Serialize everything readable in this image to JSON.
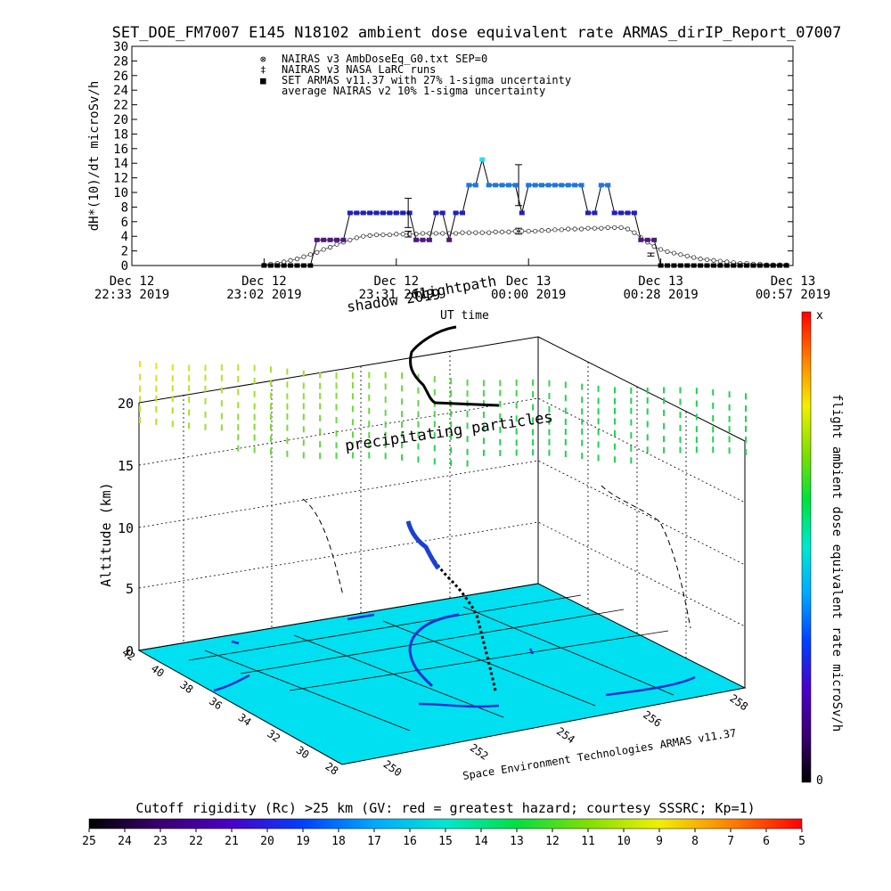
{
  "title": "SET_DOE_FM7007  E145 N18102 ambient dose equivalent rate ARMAS_dirIP_Report_07007",
  "colors": {
    "nairas_v3": "#333333",
    "armas": "#1f3fd6",
    "cyan_surface": "#00e0f0",
    "trajectory": "#000000"
  },
  "chart_data": [
    {
      "type": "scatter",
      "ylabel": "dH*(10)/dt microSv/h",
      "ylim": [
        0,
        30
      ],
      "yticks": [
        0,
        2,
        4,
        6,
        8,
        10,
        12,
        14,
        16,
        18,
        20,
        22,
        24,
        26,
        28,
        30
      ],
      "xticks": [
        {
          "line1": "Dec 12",
          "line2": "22:33 2019"
        },
        {
          "line1": "Dec 12",
          "line2": "23:02 2019"
        },
        {
          "line1": "Dec 12",
          "line2": "23:31 2019"
        },
        {
          "line1": "Dec 13",
          "line2": "00:00 2019"
        },
        {
          "line1": "Dec 13",
          "line2": "00:28 2019"
        },
        {
          "line1": "Dec 13",
          "line2": "00:57 2019"
        }
      ],
      "legend": [
        {
          "symbol": "⊗",
          "label": "NAIRAS v3 AmbDoseEq_G0.txt SEP=0"
        },
        {
          "symbol": "‡",
          "label": "NAIRAS v3 NASA LaRC runs"
        },
        {
          "symbol": "■",
          "label": "SET ARMAS v11.37 with 27% 1-sigma uncertainty"
        },
        {
          "symbol": "",
          "label": "average NAIRAS v2 10% 1-sigma uncertainty"
        }
      ],
      "series": [
        {
          "name": "NAIRAS v3 AmbDoseEq_G0.txt SEP=0",
          "x": [
            0.2,
            0.21,
            0.22,
            0.23,
            0.24,
            0.25,
            0.26,
            0.27,
            0.28,
            0.29,
            0.3,
            0.31,
            0.32,
            0.33,
            0.34,
            0.35,
            0.36,
            0.37,
            0.38,
            0.39,
            0.4,
            0.41,
            0.42,
            0.43,
            0.44,
            0.45,
            0.46,
            0.47,
            0.48,
            0.49,
            0.5,
            0.51,
            0.52,
            0.53,
            0.54,
            0.55,
            0.56,
            0.57,
            0.58,
            0.59,
            0.6,
            0.61,
            0.62,
            0.63,
            0.64,
            0.65,
            0.66,
            0.67,
            0.68,
            0.69,
            0.7,
            0.71,
            0.72,
            0.73,
            0.74,
            0.75,
            0.76,
            0.77,
            0.78,
            0.79,
            0.8,
            0.81,
            0.82,
            0.83,
            0.84,
            0.85,
            0.86,
            0.87,
            0.88,
            0.89,
            0.9,
            0.91,
            0.92,
            0.93,
            0.94,
            0.95,
            0.96,
            0.97,
            0.98,
            0.99
          ],
          "y": [
            0.1,
            0.2,
            0.3,
            0.5,
            0.7,
            0.9,
            1.2,
            1.5,
            1.8,
            2.2,
            2.5,
            2.9,
            3.2,
            3.5,
            3.8,
            4.0,
            4.1,
            4.2,
            4.2,
            4.2,
            4.3,
            4.3,
            4.3,
            4.3,
            4.4,
            4.4,
            4.4,
            4.4,
            4.4,
            4.4,
            4.5,
            4.5,
            4.5,
            4.5,
            4.5,
            4.6,
            4.6,
            4.6,
            4.7,
            4.7,
            4.7,
            4.7,
            4.8,
            4.8,
            4.9,
            4.9,
            5.0,
            5.0,
            5.0,
            5.1,
            5.1,
            5.1,
            5.2,
            5.2,
            5.2,
            5.0,
            4.5,
            3.8,
            3.2,
            2.6,
            2.2,
            1.9,
            1.7,
            1.5,
            1.3,
            1.1,
            0.9,
            0.8,
            0.7,
            0.6,
            0.5,
            0.4,
            0.3,
            0.3,
            0.2,
            0.2,
            0.1,
            0.1,
            0.1,
            0.1
          ]
        },
        {
          "name": "SET ARMAS v11.37 with 27% 1-sigma uncertainty",
          "x": [
            0.2,
            0.21,
            0.22,
            0.23,
            0.24,
            0.25,
            0.26,
            0.27,
            0.28,
            0.29,
            0.3,
            0.31,
            0.32,
            0.33,
            0.34,
            0.35,
            0.36,
            0.37,
            0.38,
            0.39,
            0.4,
            0.41,
            0.42,
            0.43,
            0.44,
            0.45,
            0.46,
            0.47,
            0.48,
            0.49,
            0.5,
            0.51,
            0.52,
            0.53,
            0.54,
            0.55,
            0.56,
            0.57,
            0.58,
            0.59,
            0.6,
            0.61,
            0.62,
            0.63,
            0.64,
            0.65,
            0.66,
            0.67,
            0.68,
            0.69,
            0.7,
            0.71,
            0.72,
            0.73,
            0.74,
            0.75,
            0.76,
            0.77,
            0.78,
            0.79,
            0.8,
            0.81,
            0.82,
            0.83,
            0.84,
            0.85,
            0.86,
            0.87,
            0.88,
            0.89,
            0.9,
            0.91,
            0.92,
            0.93,
            0.94,
            0.95,
            0.96,
            0.97,
            0.98,
            0.99
          ],
          "y": [
            0,
            0,
            0,
            0,
            0,
            0,
            0,
            0,
            3.5,
            3.5,
            3.5,
            3.5,
            3.5,
            7.2,
            7.2,
            7.2,
            7.2,
            7.2,
            7.2,
            7.2,
            7.2,
            7.2,
            7.2,
            3.5,
            3.5,
            3.5,
            7.2,
            7.2,
            3.5,
            7.2,
            7.2,
            11,
            11,
            14.5,
            11,
            11,
            11,
            11,
            11,
            7.2,
            11,
            11,
            11,
            11,
            11,
            11,
            11,
            11,
            11,
            7.2,
            7.2,
            11,
            11,
            7.2,
            7.2,
            7.2,
            7.2,
            3.5,
            3.5,
            3.5,
            0,
            0,
            0,
            0,
            0,
            0,
            0,
            0,
            0,
            0,
            0,
            0,
            0,
            0,
            0,
            0,
            0,
            0,
            0,
            0
          ]
        }
      ],
      "errorbars": [
        {
          "x": 0.418,
          "y": 7.2,
          "err": 2.0
        },
        {
          "x": 0.418,
          "y": 4.3,
          "err": 0.4
        },
        {
          "x": 0.585,
          "y": 11.0,
          "err": 2.8
        },
        {
          "x": 0.585,
          "y": 4.7,
          "err": 0.4
        },
        {
          "x": 0.785,
          "y": 1.5,
          "err": 0.2
        }
      ]
    },
    {
      "type": "heatmap",
      "ylabel": "Altitude (km)",
      "zticks": [
        0,
        5,
        10,
        15,
        20
      ],
      "lat_ticks": [
        28,
        30,
        32,
        34,
        36,
        38,
        40,
        42
      ],
      "lon_ticks": [
        250,
        252,
        254,
        256,
        258
      ],
      "annotations": {
        "shadow": "shadow 2019",
        "flightpath": "flightpath",
        "ut": "UT time",
        "particles": "precipitating particles",
        "credit": "Space Environment Technologies ARMAS v11.37"
      }
    }
  ],
  "colorbar_right": {
    "label": "flight ambient dose equivalent rate microSv/h",
    "top": "x",
    "bottom": "0"
  },
  "colorbar_bottom": {
    "title": "Cutoff rigidity (Rc) >25 km (GV: red = greatest hazard; courtesy SSSRC; Kp=1)",
    "ticks": [
      25,
      24,
      23,
      22,
      21,
      20,
      19,
      18,
      17,
      16,
      15,
      14,
      13,
      12,
      11,
      10,
      9,
      8,
      7,
      6,
      5
    ]
  }
}
